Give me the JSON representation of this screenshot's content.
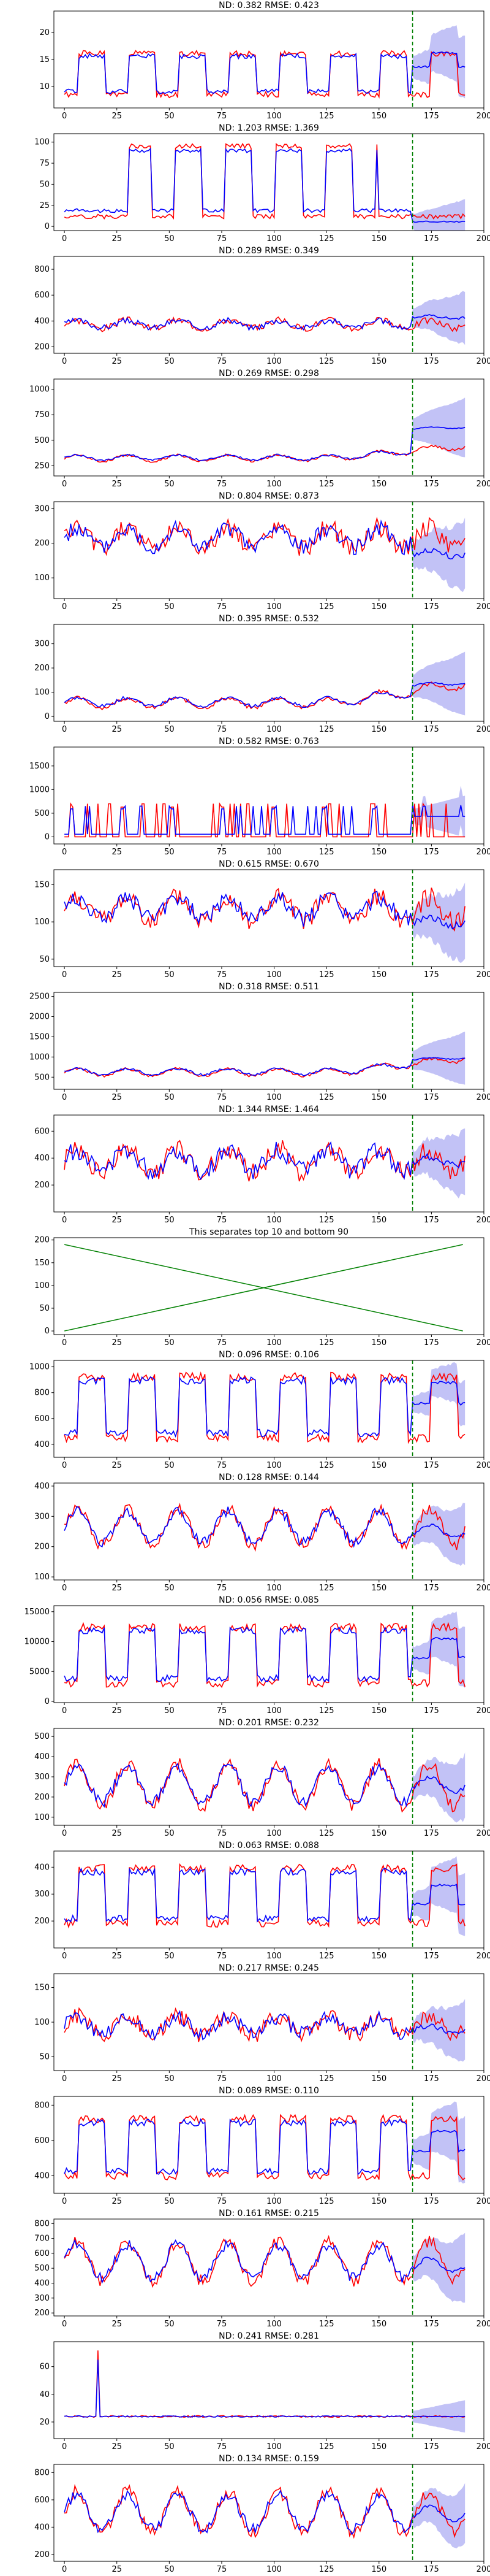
{
  "colors": {
    "actual": "#ff0000",
    "forecast": "#0000ff",
    "band": "#9a9af0",
    "split_line": "#008000",
    "separator_lines": "#008000"
  },
  "chart_data": [
    {
      "type": "line",
      "title": "ND:  0.382 RMSE:  0.423",
      "xlim": [
        -5,
        200
      ],
      "ylim": [
        6,
        24
      ],
      "yticks": [
        10,
        15,
        20
      ],
      "xticks": [
        0,
        25,
        50,
        75,
        100,
        125,
        150,
        175,
        200
      ],
      "split": 166,
      "pattern": "daily",
      "seed": 1,
      "history_base": 8,
      "history_amp": 9,
      "forecast_mean": 15,
      "forecast_band": 4,
      "series": [
        {
          "name": "",
          "role": "actual"
        },
        {
          "name": "",
          "role": "forecast"
        }
      ]
    },
    {
      "type": "line",
      "title": "ND:  1.203 RMSE:  1.369",
      "xlim": [
        -5,
        200
      ],
      "ylim": [
        -5,
        110
      ],
      "yticks": [
        0,
        25,
        50,
        75,
        100
      ],
      "xticks": [
        0,
        25,
        50,
        75,
        100,
        125,
        150,
        175,
        200
      ],
      "split": 166,
      "pattern": "blocks",
      "seed": 2,
      "history_base": 10,
      "history_amp": 90,
      "forecast_mean": 20,
      "forecast_band": 18,
      "series": [
        {
          "name": "",
          "role": "actual"
        },
        {
          "name": "",
          "role": "forecast"
        }
      ]
    },
    {
      "type": "line",
      "title": "ND:  0.289 RMSE:  0.349",
      "xlim": [
        -5,
        200
      ],
      "ylim": [
        150,
        900
      ],
      "yticks": [
        200,
        400,
        600,
        800
      ],
      "xticks": [
        0,
        25,
        50,
        75,
        100,
        125,
        150,
        175,
        200
      ],
      "split": 166,
      "pattern": "noisy",
      "seed": 3,
      "history_base": 330,
      "history_amp": 90,
      "forecast_mean": 430,
      "forecast_band": 140,
      "series": [
        {
          "name": "",
          "role": "actual"
        },
        {
          "name": "",
          "role": "forecast"
        }
      ]
    },
    {
      "type": "line",
      "title": "ND:  0.269 RMSE:  0.298",
      "xlim": [
        -5,
        200
      ],
      "ylim": [
        150,
        1100
      ],
      "yticks": [
        250,
        500,
        750,
        1000
      ],
      "xticks": [
        0,
        25,
        50,
        75,
        100,
        125,
        150,
        175,
        200
      ],
      "split": 166,
      "pattern": "rising",
      "seed": 4,
      "history_base": 300,
      "history_amp": 120,
      "forecast_mean": 600,
      "forecast_band": 200,
      "series": [
        {
          "name": "",
          "role": "actual"
        },
        {
          "name": "",
          "role": "forecast"
        }
      ]
    },
    {
      "type": "line",
      "title": "ND:  0.804 RMSE:  0.873",
      "xlim": [
        -5,
        200
      ],
      "ylim": [
        40,
        320
      ],
      "yticks": [
        100,
        200,
        300
      ],
      "xticks": [
        0,
        25,
        50,
        75,
        100,
        125,
        150,
        175,
        200
      ],
      "split": 166,
      "pattern": "noisy",
      "seed": 5,
      "history_base": 170,
      "history_amp": 90,
      "forecast_mean": 170,
      "forecast_band": 70,
      "series": [
        {
          "name": "",
          "role": "actual"
        },
        {
          "name": "",
          "role": "forecast"
        }
      ]
    },
    {
      "type": "line",
      "title": "ND:  0.395 RMSE:  0.532",
      "xlim": [
        -5,
        200
      ],
      "ylim": [
        -20,
        380
      ],
      "yticks": [
        0,
        100,
        200,
        300
      ],
      "xticks": [
        0,
        25,
        50,
        75,
        100,
        125,
        150,
        175,
        200
      ],
      "split": 166,
      "pattern": "rising",
      "seed": 6,
      "history_base": 40,
      "history_amp": 80,
      "forecast_mean": 120,
      "forecast_band": 90,
      "series": [
        {
          "name": "",
          "role": "actual"
        },
        {
          "name": "",
          "role": "forecast"
        }
      ]
    },
    {
      "type": "line",
      "title": "ND:  0.582 RMSE:  0.763",
      "xlim": [
        -5,
        200
      ],
      "ylim": [
        -150,
        1900
      ],
      "yticks": [
        0,
        500,
        1000,
        1500
      ],
      "xticks": [
        0,
        25,
        50,
        75,
        100,
        125,
        150,
        175,
        200
      ],
      "split": 166,
      "pattern": "spiky",
      "seed": 7,
      "history_base": 0,
      "history_amp": 700,
      "forecast_mean": 550,
      "forecast_band": 300,
      "series": [
        {
          "name": "",
          "role": "actual"
        },
        {
          "name": "",
          "role": "forecast"
        }
      ]
    },
    {
      "type": "line",
      "title": "ND:  0.615 RMSE:  0.670",
      "xlim": [
        -5,
        200
      ],
      "ylim": [
        40,
        170
      ],
      "yticks": [
        50,
        100,
        150
      ],
      "xticks": [
        0,
        25,
        50,
        75,
        100,
        125,
        150,
        175,
        200
      ],
      "split": 166,
      "pattern": "noisy",
      "seed": 8,
      "history_base": 95,
      "history_amp": 45,
      "forecast_mean": 100,
      "forecast_band": 35,
      "series": [
        {
          "name": "",
          "role": "actual"
        },
        {
          "name": "",
          "role": "forecast"
        }
      ]
    },
    {
      "type": "line",
      "title": "ND:  0.318 RMSE:  0.511",
      "xlim": [
        -5,
        200
      ],
      "ylim": [
        200,
        2600
      ],
      "yticks": [
        500,
        1000,
        1500,
        2000,
        2500
      ],
      "xticks": [
        0,
        25,
        50,
        75,
        100,
        125,
        150,
        175,
        200
      ],
      "split": 166,
      "pattern": "rising",
      "seed": 9,
      "history_base": 550,
      "history_amp": 350,
      "forecast_mean": 900,
      "forecast_band": 450,
      "series": [
        {
          "name": "",
          "role": "actual"
        },
        {
          "name": "",
          "role": "forecast"
        }
      ]
    },
    {
      "type": "line",
      "title": "ND:  1.344 RMSE:  1.464",
      "xlim": [
        -5,
        200
      ],
      "ylim": [
        0,
        720
      ],
      "yticks": [
        200,
        400,
        600
      ],
      "xticks": [
        0,
        25,
        50,
        75,
        100,
        125,
        150,
        175,
        200
      ],
      "split": 166,
      "pattern": "noisy",
      "seed": 10,
      "history_base": 250,
      "history_amp": 260,
      "forecast_mean": 380,
      "forecast_band": 170,
      "series": [
        {
          "name": "",
          "role": "actual"
        },
        {
          "name": "",
          "role": "forecast"
        }
      ]
    },
    {
      "type": "line",
      "title": "This separates top 10 and bottom 90",
      "xlim": [
        -5,
        200
      ],
      "ylim": [
        -8,
        205
      ],
      "yticks": [
        0,
        50,
        100,
        150,
        200
      ],
      "xticks": [
        0,
        25,
        50,
        75,
        100,
        125,
        150,
        175,
        200
      ],
      "separator": true,
      "series": [
        {
          "name": "",
          "x": [
            0,
            190
          ],
          "y": [
            0,
            190
          ]
        },
        {
          "name": "",
          "x": [
            0,
            190
          ],
          "y": [
            190,
            0
          ]
        }
      ]
    },
    {
      "type": "line",
      "title": "ND:  0.096 RMSE:  0.106",
      "xlim": [
        -5,
        200
      ],
      "ylim": [
        300,
        1050
      ],
      "yticks": [
        400,
        600,
        800,
        1000
      ],
      "xticks": [
        0,
        25,
        50,
        75,
        100,
        125,
        150,
        175,
        200
      ],
      "split": 166,
      "pattern": "daily",
      "seed": 11,
      "history_base": 420,
      "history_amp": 560,
      "forecast_mean": 800,
      "forecast_band": 120,
      "series": [
        {
          "name": "",
          "role": "actual"
        },
        {
          "name": "",
          "role": "forecast"
        }
      ]
    },
    {
      "type": "line",
      "title": "ND:  0.128 RMSE:  0.144",
      "xlim": [
        -5,
        200
      ],
      "ylim": [
        90,
        410
      ],
      "yticks": [
        100,
        200,
        300,
        400
      ],
      "xticks": [
        0,
        25,
        50,
        75,
        100,
        125,
        150,
        175,
        200
      ],
      "split": 166,
      "pattern": "wave",
      "seed": 12,
      "history_base": 190,
      "history_amp": 150,
      "forecast_mean": 250,
      "forecast_band": 70,
      "series": [
        {
          "name": "",
          "role": "actual"
        },
        {
          "name": "",
          "role": "forecast"
        }
      ]
    },
    {
      "type": "line",
      "title": "ND:  0.056 RMSE:  0.085",
      "xlim": [
        -5,
        200
      ],
      "ylim": [
        -200,
        16000
      ],
      "yticks": [
        0,
        5000,
        10000,
        15000
      ],
      "xticks": [
        0,
        25,
        50,
        75,
        100,
        125,
        150,
        175,
        200
      ],
      "split": 166,
      "pattern": "daily",
      "seed": 13,
      "history_base": 2500,
      "history_amp": 11000,
      "forecast_mean": 9000,
      "forecast_band": 3500,
      "series": [
        {
          "name": "",
          "role": "actual"
        },
        {
          "name": "",
          "role": "forecast"
        }
      ]
    },
    {
      "type": "line",
      "title": "ND:  0.201 RMSE:  0.232",
      "xlim": [
        -5,
        200
      ],
      "ylim": [
        60,
        540
      ],
      "yticks": [
        100,
        200,
        300,
        400,
        500
      ],
      "xticks": [
        0,
        25,
        50,
        75,
        100,
        125,
        150,
        175,
        200
      ],
      "split": 166,
      "pattern": "wave",
      "seed": 14,
      "history_base": 130,
      "history_amp": 260,
      "forecast_mean": 260,
      "forecast_band": 110,
      "series": [
        {
          "name": "",
          "role": "actual"
        },
        {
          "name": "",
          "role": "forecast"
        }
      ]
    },
    {
      "type": "line",
      "title": "ND:  0.063 RMSE:  0.088",
      "xlim": [
        -5,
        200
      ],
      "ylim": [
        100,
        460
      ],
      "yticks": [
        200,
        300,
        400
      ],
      "xticks": [
        0,
        25,
        50,
        75,
        100,
        125,
        150,
        175,
        200
      ],
      "split": 166,
      "pattern": "daily",
      "seed": 15,
      "history_base": 180,
      "history_amp": 240,
      "forecast_mean": 300,
      "forecast_band": 80,
      "series": [
        {
          "name": "",
          "role": "actual"
        },
        {
          "name": "",
          "role": "forecast"
        }
      ]
    },
    {
      "type": "line",
      "title": "ND:  0.217 RMSE:  0.245",
      "xlim": [
        -5,
        200
      ],
      "ylim": [
        30,
        170
      ],
      "yticks": [
        50,
        100,
        150
      ],
      "xticks": [
        0,
        25,
        50,
        75,
        100,
        125,
        150,
        175,
        200
      ],
      "split": 166,
      "pattern": "noisy",
      "seed": 16,
      "history_base": 75,
      "history_amp": 40,
      "forecast_mean": 90,
      "forecast_band": 30,
      "series": [
        {
          "name": "",
          "role": "actual"
        },
        {
          "name": "",
          "role": "forecast"
        }
      ]
    },
    {
      "type": "line",
      "title": "ND:  0.089 RMSE:  0.110",
      "xlim": [
        -5,
        200
      ],
      "ylim": [
        300,
        850
      ],
      "yticks": [
        400,
        600,
        800
      ],
      "xticks": [
        0,
        25,
        50,
        75,
        100,
        125,
        150,
        175,
        200
      ],
      "split": 166,
      "pattern": "daily",
      "seed": 17,
      "history_base": 380,
      "history_amp": 380,
      "forecast_mean": 600,
      "forecast_band": 130,
      "series": [
        {
          "name": "",
          "role": "actual"
        },
        {
          "name": "",
          "role": "forecast"
        }
      ]
    },
    {
      "type": "line",
      "title": "ND:  0.161 RMSE:  0.215",
      "xlim": [
        -5,
        200
      ],
      "ylim": [
        180,
        830
      ],
      "yticks": [
        200,
        300,
        400,
        500,
        600,
        700,
        800
      ],
      "xticks": [
        0,
        25,
        50,
        75,
        100,
        125,
        150,
        175,
        200
      ],
      "split": 166,
      "pattern": "wave",
      "seed": 18,
      "history_base": 380,
      "history_amp": 330,
      "forecast_mean": 520,
      "forecast_band": 160,
      "series": [
        {
          "name": "",
          "role": "actual"
        },
        {
          "name": "",
          "role": "forecast"
        }
      ]
    },
    {
      "type": "line",
      "title": "ND:  0.241 RMSE:  0.281",
      "xlim": [
        -5,
        200
      ],
      "ylim": [
        8,
        78
      ],
      "yticks": [
        20,
        40,
        60
      ],
      "xticks": [
        0,
        25,
        50,
        75,
        100,
        125,
        150,
        175,
        200
      ],
      "split": 166,
      "pattern": "flat",
      "seed": 19,
      "history_base": 22,
      "history_amp": 4,
      "forecast_mean": 24,
      "forecast_band": 8,
      "series": [
        {
          "name": "",
          "role": "actual"
        },
        {
          "name": "",
          "role": "forecast"
        }
      ]
    },
    {
      "type": "line",
      "title": "ND:  0.134 RMSE:  0.159",
      "xlim": [
        -5,
        200
      ],
      "ylim": [
        150,
        860
      ],
      "yticks": [
        200,
        400,
        600,
        800
      ],
      "xticks": [
        0,
        25,
        50,
        75,
        100,
        125,
        150,
        175,
        200
      ],
      "split": 166,
      "pattern": "wave",
      "seed": 20,
      "history_base": 320,
      "history_amp": 380,
      "forecast_mean": 500,
      "forecast_band": 150,
      "series": [
        {
          "name": "",
          "role": "actual"
        },
        {
          "name": "",
          "role": "forecast"
        }
      ]
    }
  ]
}
